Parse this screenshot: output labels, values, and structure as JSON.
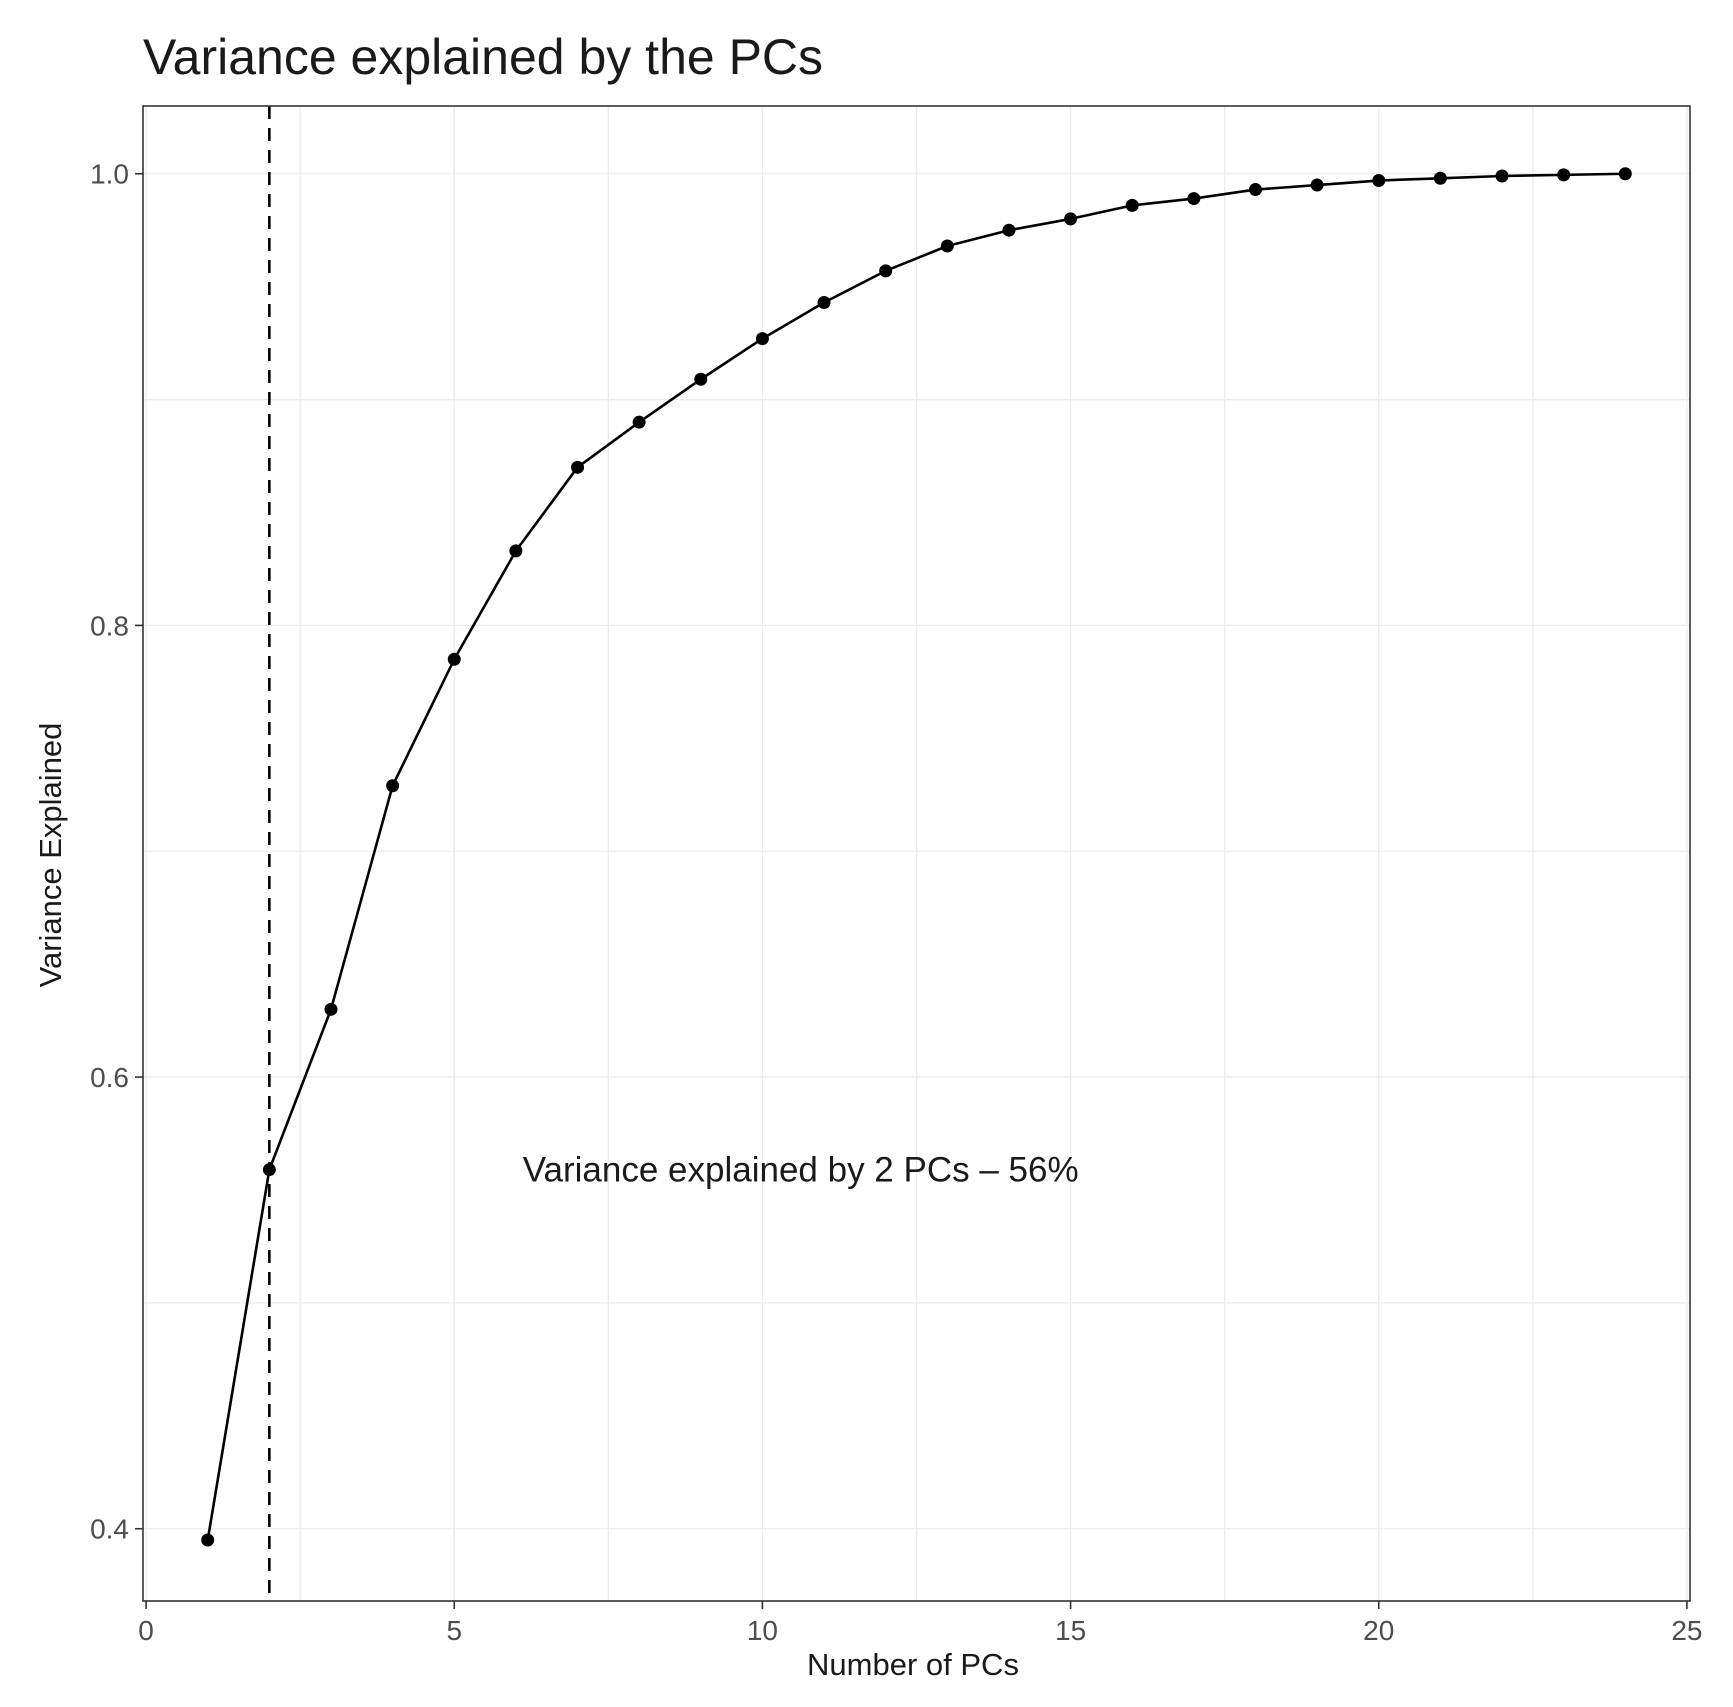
{
  "chart_data": {
    "type": "line",
    "title": "Variance explained by the PCs",
    "xlabel": "Number of PCs",
    "ylabel": "Variance Explained",
    "xlim": [
      -0.05,
      25.05
    ],
    "ylim": [
      0.368,
      1.03
    ],
    "x_ticks": [
      0,
      5,
      10,
      15,
      20,
      25
    ],
    "x_tick_labels": [
      "0",
      "5",
      "10",
      "15",
      "20",
      "25"
    ],
    "y_ticks": [
      0.4,
      0.6,
      0.8,
      1.0
    ],
    "y_tick_labels": [
      "0.4",
      "0.6",
      "0.8",
      "1.0"
    ],
    "grid": true,
    "markers": true,
    "series": [
      {
        "x": [
          1,
          2,
          3,
          4,
          5,
          6,
          7,
          8,
          9,
          10,
          11,
          12,
          13,
          14,
          15,
          16,
          17,
          18,
          19,
          20,
          21,
          22,
          23,
          24
        ],
        "values": [
          0.395,
          0.559,
          0.63,
          0.729,
          0.785,
          0.833,
          0.87,
          0.89,
          0.909,
          0.927,
          0.943,
          0.957,
          0.968,
          0.975,
          0.98,
          0.986,
          0.989,
          0.993,
          0.995,
          0.997,
          0.998,
          0.999,
          0.9995,
          1.0
        ]
      }
    ],
    "reference_line": {
      "orientation": "vertical",
      "x": 2,
      "style": "dashed"
    },
    "annotation": {
      "text": "Variance explained by 2 PCs – 56%",
      "x": 12,
      "y": 0.559
    }
  }
}
